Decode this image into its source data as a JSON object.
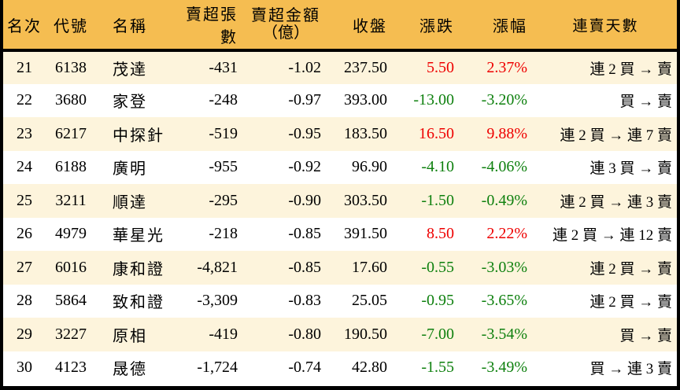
{
  "colors": {
    "header_bg": "#f5bd51",
    "row_alt_bg": "#fdf4dc",
    "row_bg": "#ffffff",
    "border": "#000000",
    "up": "#ee0000",
    "down": "#0e800e"
  },
  "chart_data": {
    "type": "table",
    "headers": [
      {
        "key": "rank",
        "label": "名次"
      },
      {
        "key": "code",
        "label": "代號"
      },
      {
        "key": "name",
        "label": "名稱"
      },
      {
        "key": "volume",
        "label": "賣超張數"
      },
      {
        "key": "amount",
        "label": "賣超金額",
        "label2": "（億）"
      },
      {
        "key": "close",
        "label": "收盤"
      },
      {
        "key": "change",
        "label": "漲跌"
      },
      {
        "key": "change_pct",
        "label": "漲幅"
      },
      {
        "key": "streak",
        "label": "連賣天數"
      }
    ],
    "rows": [
      {
        "rank": "21",
        "code": "6138",
        "name": "茂達",
        "volume": "-431",
        "amount": "-1.02",
        "close": "237.50",
        "change": "5.50",
        "change_pct": "2.37%",
        "direction": "up",
        "streak": "連 2 買 → 賣"
      },
      {
        "rank": "22",
        "code": "3680",
        "name": "家登",
        "volume": "-248",
        "amount": "-0.97",
        "close": "393.00",
        "change": "-13.00",
        "change_pct": "-3.20%",
        "direction": "down",
        "streak": "買 → 賣"
      },
      {
        "rank": "23",
        "code": "6217",
        "name": "中探針",
        "volume": "-519",
        "amount": "-0.95",
        "close": "183.50",
        "change": "16.50",
        "change_pct": "9.88%",
        "direction": "up",
        "streak": "連 2 買 → 連 7 賣"
      },
      {
        "rank": "24",
        "code": "6188",
        "name": "廣明",
        "volume": "-955",
        "amount": "-0.92",
        "close": "96.90",
        "change": "-4.10",
        "change_pct": "-4.06%",
        "direction": "down",
        "streak": "連 3 買 → 賣"
      },
      {
        "rank": "25",
        "code": "3211",
        "name": "順達",
        "volume": "-295",
        "amount": "-0.90",
        "close": "303.50",
        "change": "-1.50",
        "change_pct": "-0.49%",
        "direction": "down",
        "streak": "連 2 買 → 連 3 賣"
      },
      {
        "rank": "26",
        "code": "4979",
        "name": "華星光",
        "volume": "-218",
        "amount": "-0.85",
        "close": "391.50",
        "change": "8.50",
        "change_pct": "2.22%",
        "direction": "up",
        "streak": "連 2 買 → 連 12 賣"
      },
      {
        "rank": "27",
        "code": "6016",
        "name": "康和證",
        "volume": "-4,821",
        "amount": "-0.85",
        "close": "17.60",
        "change": "-0.55",
        "change_pct": "-3.03%",
        "direction": "down",
        "streak": "連 2 買 → 賣"
      },
      {
        "rank": "28",
        "code": "5864",
        "name": "致和證",
        "volume": "-3,309",
        "amount": "-0.83",
        "close": "25.05",
        "change": "-0.95",
        "change_pct": "-3.65%",
        "direction": "down",
        "streak": "連 2 買 → 賣"
      },
      {
        "rank": "29",
        "code": "3227",
        "name": "原相",
        "volume": "-419",
        "amount": "-0.80",
        "close": "190.50",
        "change": "-7.00",
        "change_pct": "-3.54%",
        "direction": "down",
        "streak": "買 → 賣"
      },
      {
        "rank": "30",
        "code": "4123",
        "name": "晟德",
        "volume": "-1,724",
        "amount": "-0.74",
        "close": "42.80",
        "change": "-1.55",
        "change_pct": "-3.49%",
        "direction": "down",
        "streak": "買 → 連 3 賣"
      }
    ]
  }
}
